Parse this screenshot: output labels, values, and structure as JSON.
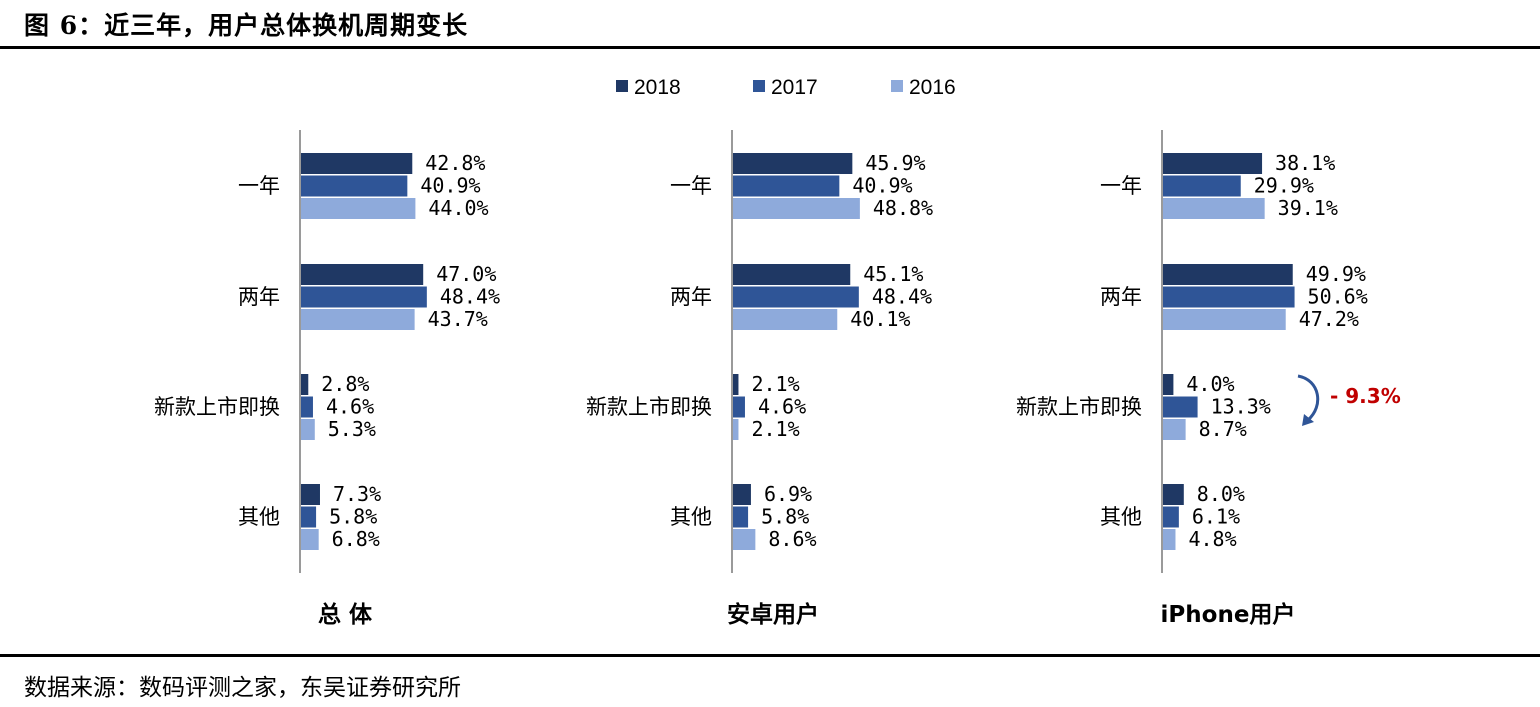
{
  "figure_title": "图 6：近三年，用户总体换机周期变长",
  "source": "数据来源：数码评测之家，东吴证券研究所",
  "colors": {
    "2018": "#1f3864",
    "2017": "#2f5597",
    "2016": "#8eaadb",
    "annotation": "#c00000"
  },
  "legend": [
    "2018",
    "2017",
    "2016"
  ],
  "annotation": {
    "text": "- 9.3%",
    "icon": "curved-arrow-icon"
  },
  "chart_data": [
    {
      "type": "bar",
      "orientation": "horizontal",
      "title": "总 体",
      "categories": [
        "一年",
        "两年",
        "新款上市即换",
        "其他"
      ],
      "series": [
        {
          "name": "2018",
          "values": [
            42.8,
            47.0,
            2.8,
            7.3
          ],
          "labels": [
            "42.8%",
            "47.0%",
            "2.8%",
            "7.3%"
          ]
        },
        {
          "name": "2017",
          "values": [
            40.9,
            48.4,
            4.6,
            5.8
          ],
          "labels": [
            "40.9%",
            "48.4%",
            "4.6%",
            "5.8%"
          ]
        },
        {
          "name": "2016",
          "values": [
            44.0,
            43.7,
            5.3,
            6.8
          ],
          "labels": [
            "44.0%",
            "43.7%",
            "5.3%",
            "6.8%"
          ]
        }
      ],
      "legend": "top-center",
      "grid": false
    },
    {
      "type": "bar",
      "orientation": "horizontal",
      "title": "安卓用户",
      "categories": [
        "一年",
        "两年",
        "新款上市即换",
        "其他"
      ],
      "series": [
        {
          "name": "2018",
          "values": [
            45.9,
            45.1,
            2.1,
            6.9
          ],
          "labels": [
            "45.9%",
            "45.1%",
            "2.1%",
            "6.9%"
          ]
        },
        {
          "name": "2017",
          "values": [
            40.9,
            48.4,
            4.6,
            5.8
          ],
          "labels": [
            "40.9%",
            "48.4%",
            "4.6%",
            "5.8%"
          ]
        },
        {
          "name": "2016",
          "values": [
            48.8,
            40.1,
            2.1,
            8.6
          ],
          "labels": [
            "48.8%",
            "40.1%",
            "2.1%",
            "8.6%"
          ]
        }
      ],
      "legend": "top-center",
      "grid": false
    },
    {
      "type": "bar",
      "orientation": "horizontal",
      "title": "iPhone用户",
      "categories": [
        "一年",
        "两年",
        "新款上市即换",
        "其他"
      ],
      "series": [
        {
          "name": "2018",
          "values": [
            38.1,
            49.9,
            4.0,
            8.0
          ],
          "labels": [
            "38.1%",
            "49.9%",
            "4.0%",
            "8.0%"
          ]
        },
        {
          "name": "2017",
          "values": [
            29.9,
            50.6,
            13.3,
            6.1
          ],
          "labels": [
            "29.9%",
            "50.6%",
            "13.3%",
            "6.1%"
          ]
        },
        {
          "name": "2016",
          "values": [
            39.1,
            47.2,
            8.7,
            4.8
          ],
          "labels": [
            "39.1%",
            "47.2%",
            "8.7%",
            "4.8%"
          ]
        }
      ],
      "legend": "top-center",
      "grid": false
    }
  ]
}
